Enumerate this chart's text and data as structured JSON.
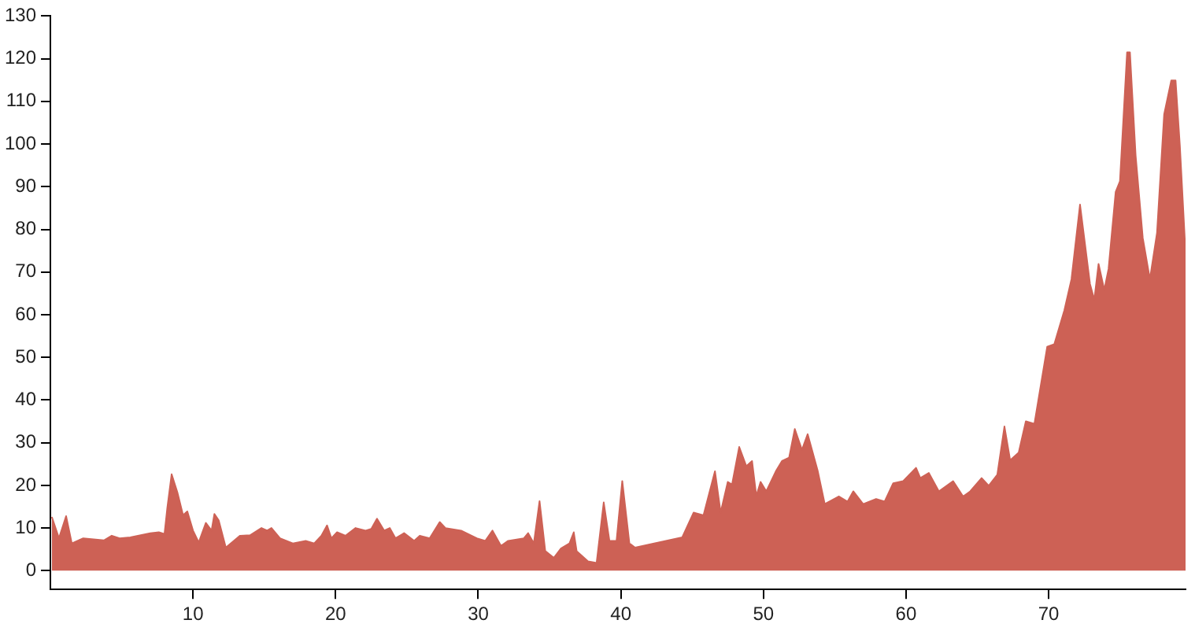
{
  "chart_data": {
    "type": "area",
    "xlim": [
      0,
      79.6
    ],
    "xticks": [
      10,
      20,
      30,
      40,
      50,
      60,
      70
    ],
    "ylim": [
      -4.4,
      130
    ],
    "yticks": [
      0,
      10,
      20,
      30,
      40,
      50,
      60,
      70,
      80,
      90,
      100,
      110,
      120,
      130
    ],
    "grid": false,
    "x": [
      0.1,
      0.6,
      1.1,
      1.5,
      2.3,
      3.75,
      4.3,
      4.85,
      5.6,
      7.0,
      7.6,
      8.0,
      8.2,
      8.5,
      8.9,
      9.3,
      9.6,
      10,
      10.4,
      10.9,
      11.3,
      11.5,
      11.8,
      12.3,
      13.3,
      14.0,
      14.8,
      15.2,
      15.5,
      16.1,
      17.0,
      17.9,
      18.5,
      19.0,
      19.4,
      19.7,
      20.1,
      20.7,
      21.4,
      22.1,
      22.5,
      22.9,
      23.4,
      23.8,
      24.2,
      24.8,
      25.5,
      25.9,
      26.6,
      27.3,
      27.7,
      28.8,
      29.9,
      30.5,
      31.0,
      31.6,
      32.1,
      33.2,
      33.5,
      33.9,
      34.3,
      34.7,
      35.3,
      35.8,
      36.4,
      36.7,
      36.9,
      37.7,
      38.3,
      38.8,
      39.2,
      39.7,
      40.1,
      40.6,
      41.0,
      44.3,
      45.1,
      45.8,
      46.6,
      47.0,
      47.5,
      47.8,
      48.3,
      48.8,
      49.2,
      49.5,
      49.8,
      50.2,
      50.9,
      51.3,
      51.8,
      52.2,
      52.7,
      53.1,
      53.8,
      54.3,
      55.3,
      55.9,
      56.3,
      57.0,
      57.9,
      58.5,
      59.1,
      59.8,
      60.7,
      61.0,
      61.6,
      62.3,
      63.3,
      64.0,
      64.5,
      65.3,
      65.8,
      66.4,
      66.9,
      67.3,
      67.9,
      68.4,
      69.0,
      69.9,
      70.4,
      71.1,
      71.6,
      72.2,
      72.9,
      73.2,
      73.5,
      73.9,
      74.2,
      74.7,
      75.0,
      75.3,
      75.5,
      75.7,
      76.1,
      76.6,
      77.1,
      77.6,
      78.1,
      78.6,
      78.9,
      79.2,
      79.6
    ],
    "series": [
      {
        "color": "#cd6155",
        "values": [
          12.6,
          7.6,
          12.8,
          6.4,
          7.6,
          7.1,
          8.2,
          7.6,
          7.8,
          8.8,
          9.0,
          8.6,
          14.8,
          22.6,
          18.4,
          13,
          13.9,
          9.4,
          6.6,
          11.2,
          9.4,
          13.3,
          11.8,
          5.4,
          8.2,
          8.3,
          10,
          9.4,
          10,
          7.6,
          6.4,
          7.0,
          6.4,
          8.2,
          10.6,
          7.6,
          9.0,
          8.2,
          10,
          9.4,
          9.8,
          12.2,
          9.4,
          10,
          7.6,
          8.8,
          7.0,
          8.2,
          7.6,
          11.4,
          10,
          9.4,
          7.6,
          7.0,
          9.4,
          5.8,
          7.0,
          7.6,
          8.8,
          6.4,
          16.3,
          4.6,
          3.0,
          5.2,
          6.4,
          9.0,
          4.6,
          2.2,
          1.8,
          16,
          7.0,
          7.0,
          21,
          6.4,
          5.4,
          7.8,
          13.6,
          13,
          23.3,
          13.6,
          20.8,
          20.2,
          29,
          24.5,
          25.7,
          17.5,
          20.8,
          18.6,
          23.5,
          25.7,
          26.5,
          33.2,
          28.3,
          32,
          23.5,
          15.6,
          17.4,
          16.2,
          18.6,
          15.6,
          16.8,
          16.2,
          20.5,
          21,
          24.1,
          21.7,
          22.9,
          18.6,
          21,
          17.4,
          18.6,
          21.7,
          19.9,
          22.5,
          33.8,
          25.9,
          27.7,
          35,
          34.4,
          52.5,
          53.1,
          61,
          68.3,
          85.8,
          67.2,
          63.5,
          71.9,
          65.8,
          70.7,
          88.8,
          91.3,
          109.4,
          121.5,
          121.5,
          97.3,
          78,
          68.3,
          79.2,
          107,
          114.9,
          114.9,
          99.7,
          74.3
        ]
      }
    ]
  }
}
